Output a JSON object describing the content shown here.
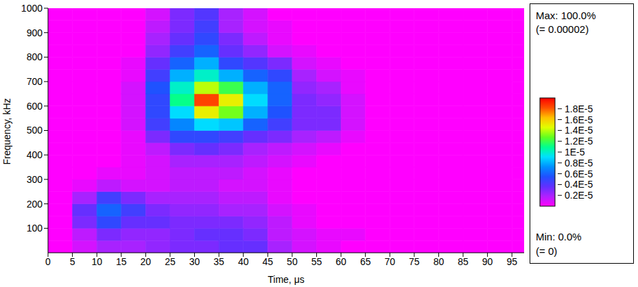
{
  "chart_data": {
    "type": "heatmap",
    "x_label": "Time, μs",
    "y_label": "Frequency, kHz",
    "x_bins": [
      0,
      5,
      10,
      15,
      20,
      25,
      30,
      35,
      40,
      45,
      50,
      55,
      60,
      65,
      70,
      75,
      80,
      85,
      90,
      95,
      97.5
    ],
    "y_bins": [
      0,
      50,
      100,
      150,
      200,
      250,
      300,
      350,
      400,
      450,
      500,
      550,
      600,
      650,
      700,
      750,
      800,
      850,
      900,
      950,
      1000
    ],
    "xlim": [
      0,
      97.5
    ],
    "ylim": [
      0,
      1000
    ],
    "xticks": [
      0,
      5,
      10,
      15,
      20,
      25,
      30,
      35,
      40,
      45,
      50,
      55,
      60,
      65,
      70,
      75,
      80,
      85,
      90,
      95
    ],
    "yticks": [
      100,
      200,
      300,
      400,
      500,
      600,
      700,
      800,
      900,
      1000
    ],
    "grid": false,
    "values": [
      [
        0,
        1e-06,
        2e-06,
        2e-06,
        2.5e-06,
        3e-06,
        3e-06,
        3.5e-06,
        3.5e-06,
        2e-06,
        1e-06,
        5e-07,
        0,
        0,
        0,
        0,
        0,
        0,
        0,
        0
      ],
      [
        0,
        1.5e-06,
        3e-06,
        2.5e-06,
        2.5e-06,
        3e-06,
        3.5e-06,
        3.5e-06,
        3e-06,
        1.5e-06,
        1e-06,
        5e-07,
        5e-07,
        0,
        0,
        0,
        0,
        0,
        0,
        0
      ],
      [
        0,
        3e-06,
        5e-06,
        3.5e-06,
        3.5e-06,
        3e-06,
        3e-06,
        3e-06,
        2.5e-06,
        1.5e-06,
        5e-07,
        0,
        0,
        0,
        0,
        0,
        0,
        0,
        0,
        0
      ],
      [
        0,
        3.5e-06,
        6e-06,
        4.5e-06,
        3e-06,
        2.5e-06,
        2.5e-06,
        2e-06,
        2e-06,
        1e-06,
        5e-07,
        0,
        0,
        0,
        0,
        0,
        0,
        0,
        0,
        0
      ],
      [
        0,
        2e-06,
        4.5e-06,
        3e-06,
        2e-06,
        2e-06,
        2e-06,
        1.5e-06,
        1.5e-06,
        5e-07,
        0,
        0,
        0,
        0,
        0,
        0,
        0,
        0,
        0,
        0
      ],
      [
        0,
        5e-07,
        1.5e-06,
        1e-06,
        1e-06,
        1.5e-06,
        1.5e-06,
        1e-06,
        1e-06,
        5e-07,
        0,
        0,
        0,
        0,
        0,
        0,
        0,
        0,
        0,
        0
      ],
      [
        0,
        0,
        5e-07,
        5e-07,
        1e-06,
        1.5e-06,
        1.5e-06,
        1.5e-06,
        1e-06,
        5e-07,
        0,
        0,
        0,
        0,
        0,
        0,
        0,
        0,
        0,
        0
      ],
      [
        0,
        0,
        0,
        5e-07,
        1e-06,
        2e-06,
        2e-06,
        2e-06,
        1.5e-06,
        1e-06,
        5e-07,
        0,
        0,
        0,
        0,
        0,
        0,
        0,
        0,
        0
      ],
      [
        0,
        0,
        0,
        5e-07,
        1.5e-06,
        3e-06,
        3.5e-06,
        3e-06,
        2e-06,
        1.5e-06,
        1e-06,
        5e-07,
        0,
        0,
        0,
        0,
        0,
        0,
        0,
        0
      ],
      [
        0,
        0,
        0,
        5e-07,
        3e-06,
        5e-06,
        5e-06,
        4.5e-06,
        3.5e-06,
        3e-06,
        2e-06,
        1.5e-06,
        5e-07,
        0,
        0,
        0,
        0,
        0,
        0,
        0
      ],
      [
        0,
        0,
        0,
        1e-06,
        4.5e-06,
        7e-06,
        9e-06,
        8.5e-06,
        6e-06,
        4.5e-06,
        3e-06,
        3e-06,
        1e-06,
        0,
        0,
        0,
        0,
        0,
        0,
        0
      ],
      [
        0,
        0,
        0,
        1e-06,
        5e-06,
        9e-06,
        1.5e-05,
        1.3e-05,
        8e-06,
        5.5e-06,
        3e-06,
        3e-06,
        1e-06,
        0,
        0,
        0,
        0,
        0,
        0,
        0
      ],
      [
        0,
        0,
        0,
        1e-06,
        5e-06,
        1.1e-05,
        1.85e-05,
        1.5e-05,
        9e-06,
        6e-06,
        3e-06,
        2.5e-06,
        1e-06,
        0,
        0,
        0,
        0,
        0,
        0,
        0
      ],
      [
        0,
        0,
        0,
        1e-06,
        5.5e-06,
        1e-05,
        1.4e-05,
        1.2e-05,
        8e-06,
        6e-06,
        2.5e-06,
        2e-06,
        5e-07,
        0,
        0,
        0,
        0,
        0,
        0,
        0
      ],
      [
        0,
        0,
        0,
        5e-07,
        4.5e-06,
        8e-06,
        1e-05,
        8e-06,
        6e-06,
        5e-06,
        2e-06,
        1e-06,
        5e-07,
        0,
        0,
        0,
        0,
        0,
        0,
        0
      ],
      [
        0,
        0,
        0,
        5e-07,
        3.5e-06,
        6e-06,
        8e-06,
        5e-06,
        4e-06,
        3e-06,
        1e-06,
        5e-07,
        0,
        0,
        0,
        0,
        0,
        0,
        0,
        0
      ],
      [
        0,
        0,
        0,
        0,
        2.5e-06,
        4.5e-06,
        6e-06,
        3.5e-06,
        2.5e-06,
        1e-06,
        5e-07,
        0,
        0,
        0,
        0,
        0,
        0,
        0,
        0,
        0
      ],
      [
        0,
        0,
        0,
        0,
        2e-06,
        3.5e-06,
        5e-06,
        3e-06,
        1.5e-06,
        5e-07,
        0,
        0,
        0,
        0,
        0,
        0,
        0,
        0,
        0,
        0
      ],
      [
        0,
        0,
        0,
        0,
        1.5e-06,
        3e-06,
        4.5e-06,
        2e-06,
        1e-06,
        5e-07,
        0,
        0,
        0,
        0,
        0,
        0,
        0,
        0,
        0,
        0
      ],
      [
        0,
        0,
        0,
        0,
        1e-06,
        3e-06,
        4e-06,
        2e-06,
        1e-06,
        0,
        0,
        0,
        0,
        0,
        0,
        0,
        0,
        0,
        0,
        0
      ]
    ],
    "colorbar": {
      "range": [
        0,
        2e-05
      ],
      "ticks": [
        {
          "value": 2e-06,
          "label": "0.2E-5"
        },
        {
          "value": 4e-06,
          "label": "0.4E-5"
        },
        {
          "value": 6e-06,
          "label": "0.6E-5"
        },
        {
          "value": 8e-06,
          "label": "0.8E-5"
        },
        {
          "value": 1e-05,
          "label": "1E-5"
        },
        {
          "value": 1.2e-05,
          "label": "1.2E-5"
        },
        {
          "value": 1.4e-05,
          "label": "1.4E-5"
        },
        {
          "value": 1.6e-05,
          "label": "1.6E-5"
        },
        {
          "value": 1.8e-05,
          "label": "1.8E-5"
        }
      ],
      "colors": [
        "#ff00ff",
        "#b020ff",
        "#6030ff",
        "#2050ff",
        "#0090ff",
        "#00e0ff",
        "#00ff90",
        "#60ff20",
        "#e0ff00",
        "#ffc000",
        "#ff5000",
        "#ff0000"
      ],
      "max_label": "Max: 100.0%",
      "max_value_label": "(= 0.00002)",
      "min_label": "Min: 0.0%",
      "min_value_label": "(= 0)"
    }
  }
}
